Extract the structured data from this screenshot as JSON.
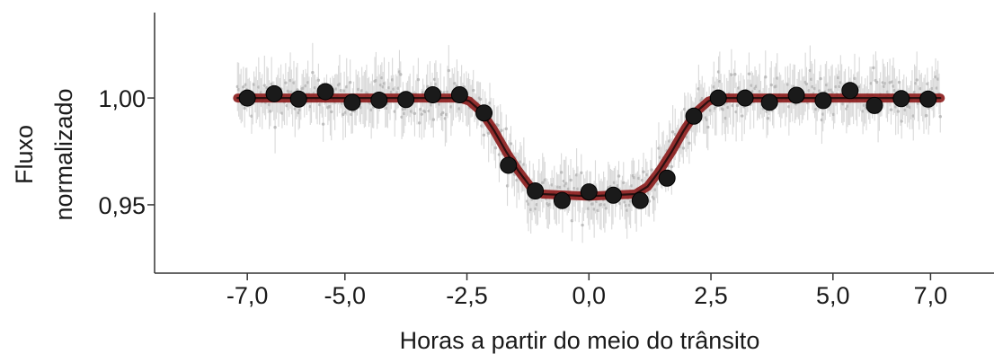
{
  "chart_data": {
    "type": "scatter",
    "title": "",
    "xlabel": "Horas a partir do meio do trânsito",
    "ylabel_lines": [
      "Fluxo",
      "normalizado"
    ],
    "xlim": [
      -8.9,
      8.3
    ],
    "ylim": [
      0.918,
      1.04
    ],
    "x_ticks": [
      -7.0,
      -5.0,
      -2.5,
      0.0,
      2.5,
      5.0,
      7.0
    ],
    "x_tick_labels": [
      "-7,0",
      "-5,0",
      "-2,5",
      "0,0",
      "2,5",
      "5,0",
      "7,0"
    ],
    "y_ticks": [
      1.0,
      0.95
    ],
    "y_tick_labels": [
      "1,00",
      "0,95"
    ],
    "grid": false,
    "series": [
      {
        "kind": "binned_points",
        "color": "#1a1a1a",
        "x": [
          -7.0,
          -6.45,
          -5.95,
          -5.4,
          -4.85,
          -4.3,
          -3.75,
          -3.2,
          -2.65,
          -2.15,
          -1.65,
          -1.1,
          -0.55,
          0.0,
          0.5,
          1.05,
          1.6,
          2.15,
          2.65,
          3.2,
          3.7,
          4.25,
          4.8,
          5.35,
          5.85,
          6.4,
          6.95
        ],
        "y": [
          1.0,
          1.002,
          0.9995,
          1.003,
          0.998,
          0.999,
          0.9993,
          1.0015,
          1.0015,
          0.993,
          0.9685,
          0.9565,
          0.952,
          0.956,
          0.9545,
          0.952,
          0.9625,
          0.9915,
          1.0,
          1.0,
          0.998,
          1.0013,
          0.9988,
          1.0035,
          0.9965,
          0.9997,
          0.9995
        ]
      },
      {
        "kind": "model_curve",
        "color": "#8b1a1a",
        "x": [
          -7.2,
          -2.65,
          -2.45,
          -2.2,
          -1.95,
          -1.7,
          -1.45,
          -1.2,
          -0.95,
          0.0,
          0.95,
          1.2,
          1.45,
          1.7,
          1.95,
          2.2,
          2.45,
          2.65,
          7.2
        ],
        "y": [
          1.0,
          1.0,
          0.9985,
          0.9935,
          0.985,
          0.975,
          0.966,
          0.9585,
          0.955,
          0.954,
          0.955,
          0.9585,
          0.966,
          0.975,
          0.985,
          0.9935,
          0.9985,
          1.0,
          1.0
        ]
      },
      {
        "kind": "raw_points",
        "color": "#b5b5b5",
        "description_count": 600
      }
    ]
  }
}
